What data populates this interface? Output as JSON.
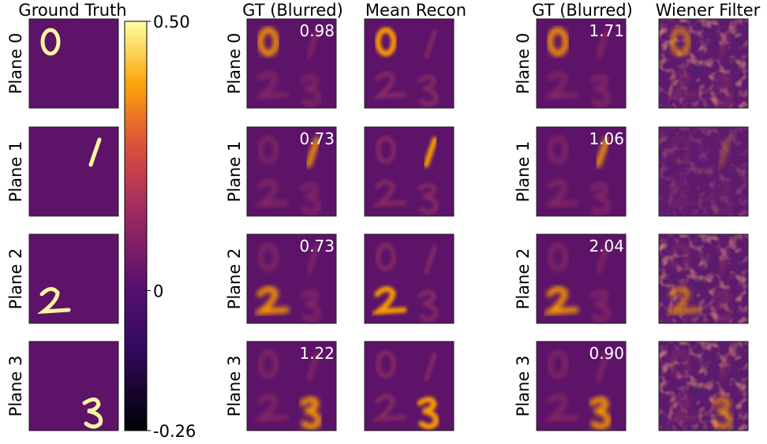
{
  "column_titles": [
    "Ground Truth",
    "GT (Blurred)",
    "Mean Recon",
    "GT (Blurred)",
    "Wiener Filter"
  ],
  "rows": [
    {
      "label": "Plane 0",
      "blurred_score": "0.98",
      "wiener_score": "1.71"
    },
    {
      "label": "Plane 1",
      "blurred_score": "0.73",
      "wiener_score": "1.06"
    },
    {
      "label": "Plane 2",
      "blurred_score": "0.73",
      "wiener_score": "2.04"
    },
    {
      "label": "Plane 3",
      "blurred_score": "1.22",
      "wiener_score": "0.90"
    }
  ],
  "colorbar": {
    "lim": [
      -0.26,
      0.5
    ],
    "ticks": [
      {
        "value": 0.5,
        "label": "0.50"
      },
      0,
      {
        "value": -0.26,
        "label": "-0.26"
      }
    ]
  }
}
